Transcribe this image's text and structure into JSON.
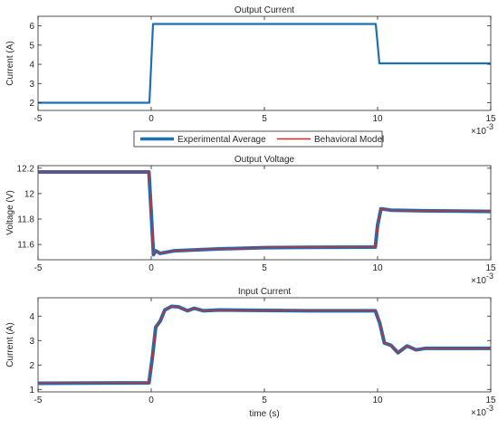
{
  "colors": {
    "experimental": "#1f6fb4",
    "model": "#d62728",
    "axis": "#262626"
  },
  "legend": {
    "placement": "between-top-and-middle",
    "entries": [
      {
        "label": "Experimental Average",
        "color": "#1f6fb4"
      },
      {
        "label": "Behavioral Model",
        "color": "#d62728"
      }
    ]
  },
  "chart_data": [
    {
      "type": "line",
      "title": "Output Current",
      "xlabel": "",
      "ylabel": "Current (A)",
      "x_exponent_label": "×10",
      "x_exponent": "-3",
      "xlim": [
        -5,
        15
      ],
      "ylim": [
        1.6,
        6.5
      ],
      "xticks": [
        "-5",
        "0",
        "5",
        "10",
        "15"
      ],
      "yticks": [
        2,
        3,
        4,
        5,
        6
      ],
      "grid": false,
      "series": [
        {
          "name": "Experimental Average",
          "color": "#1f6fb4",
          "width": 2.2,
          "x": [
            -5,
            -0.08,
            0.08,
            9.92,
            10.08,
            15
          ],
          "y": [
            2.0,
            2.0,
            6.1,
            6.1,
            4.05,
            4.05
          ]
        }
      ]
    },
    {
      "type": "line",
      "title": "Output Voltage",
      "xlabel": "",
      "ylabel": "Voltage (V)",
      "x_exponent_label": "×10",
      "x_exponent": "-3",
      "xlim": [
        -5,
        15
      ],
      "ylim": [
        11.48,
        12.22
      ],
      "xticks": [
        "-5",
        "0",
        "5",
        "10",
        "15"
      ],
      "yticks": [
        11.6,
        11.8,
        12,
        12.2
      ],
      "grid": false,
      "series": [
        {
          "name": "Experimental Average",
          "color": "#1f6fb4",
          "width": 4,
          "x": [
            -5,
            -0.1,
            0.0,
            0.1,
            0.2,
            0.4,
            1,
            3,
            5,
            7,
            9.9,
            10.0,
            10.15,
            10.6,
            12,
            15
          ],
          "y": [
            12.17,
            12.17,
            11.85,
            11.52,
            11.55,
            11.53,
            11.55,
            11.565,
            11.575,
            11.578,
            11.58,
            11.75,
            11.88,
            11.87,
            11.865,
            11.86
          ]
        },
        {
          "name": "Behavioral Model",
          "color": "#d62728",
          "width": 1.2,
          "x": [
            -5,
            -0.1,
            0.0,
            0.1,
            0.2,
            0.4,
            1,
            3,
            5,
            7,
            9.9,
            10.0,
            10.15,
            10.6,
            12,
            15
          ],
          "y": [
            12.17,
            12.17,
            11.85,
            11.52,
            11.55,
            11.53,
            11.55,
            11.565,
            11.575,
            11.578,
            11.58,
            11.75,
            11.88,
            11.87,
            11.865,
            11.86
          ]
        }
      ]
    },
    {
      "type": "line",
      "title": "Input Current",
      "xlabel": "time (s)",
      "ylabel": "Current (A)",
      "x_exponent_label": "×10",
      "x_exponent": "-3",
      "xlim": [
        -5,
        15
      ],
      "ylim": [
        0.9,
        4.75
      ],
      "xticks": [
        "-5",
        "0",
        "5",
        "10",
        "15"
      ],
      "yticks": [
        1,
        2,
        3,
        4
      ],
      "grid": false,
      "series": [
        {
          "name": "Experimental Average",
          "color": "#1f6fb4",
          "width": 4,
          "x": [
            -5,
            -0.1,
            0.05,
            0.2,
            0.4,
            0.6,
            0.9,
            1.2,
            1.6,
            1.9,
            2.3,
            3,
            5,
            7,
            9.9,
            10.1,
            10.3,
            10.6,
            10.9,
            11.3,
            11.7,
            12.1,
            15
          ],
          "y": [
            1.25,
            1.27,
            2.3,
            3.55,
            3.8,
            4.25,
            4.4,
            4.38,
            4.22,
            4.32,
            4.22,
            4.25,
            4.23,
            4.22,
            4.22,
            3.7,
            2.9,
            2.8,
            2.5,
            2.78,
            2.62,
            2.68,
            2.68
          ]
        },
        {
          "name": "Behavioral Model",
          "color": "#d62728",
          "width": 1.2,
          "x": [
            -5,
            -0.1,
            0.05,
            0.2,
            0.4,
            0.6,
            0.9,
            1.2,
            1.6,
            1.9,
            2.3,
            3,
            5,
            7,
            9.9,
            10.1,
            10.3,
            10.6,
            10.9,
            11.3,
            11.7,
            12.1,
            15
          ],
          "y": [
            1.25,
            1.27,
            2.3,
            3.55,
            3.8,
            4.25,
            4.4,
            4.38,
            4.22,
            4.32,
            4.22,
            4.25,
            4.23,
            4.22,
            4.22,
            3.7,
            2.9,
            2.8,
            2.5,
            2.78,
            2.62,
            2.68,
            2.68
          ]
        }
      ]
    }
  ]
}
